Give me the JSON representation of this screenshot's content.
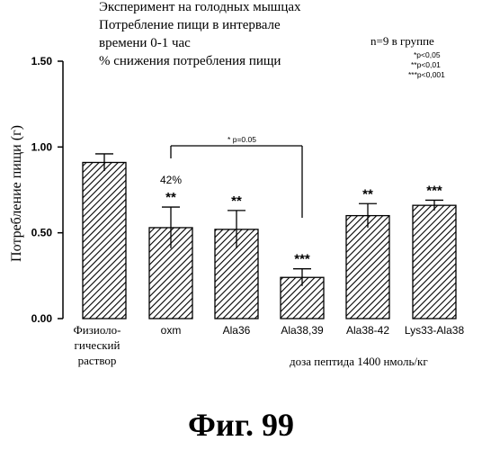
{
  "chart_data": {
    "type": "bar",
    "title_lines": [
      "Эксперимент на голодных мышцах",
      "Потребление пищи в интервале",
      "времени 0-1 час",
      "% снижения потребления пищи"
    ],
    "ylabel": "Потребление пищи (г)",
    "xlabel": "доза пептида 1400 нмоль/кг",
    "group_size_note": "n=9 в группе",
    "significance_legend": [
      "*p<0,05",
      "**p<0,01",
      "***p<0,001"
    ],
    "ylim": [
      0,
      1.5
    ],
    "yticks": [
      "0.00",
      "0.50",
      "1.00",
      "1.50"
    ],
    "categories": [
      [
        "Физиоло-",
        "гический",
        "раствор"
      ],
      [
        "oxm"
      ],
      [
        "Ala36"
      ],
      [
        "Ala38,39"
      ],
      [
        "Ala38-42"
      ],
      [
        "Lys33-Ala38"
      ]
    ],
    "values": [
      0.91,
      0.53,
      0.52,
      0.24,
      0.6,
      0.66
    ],
    "errors": [
      0.05,
      0.12,
      0.11,
      0.05,
      0.07,
      0.03
    ],
    "bar_annotations": [
      "",
      "**",
      "**",
      "***",
      "**",
      "***"
    ],
    "percent_label": "42%",
    "bracket_label": "* p=0.05",
    "bracket_between": [
      1,
      3
    ]
  },
  "figure_caption": "Фиг.  99"
}
